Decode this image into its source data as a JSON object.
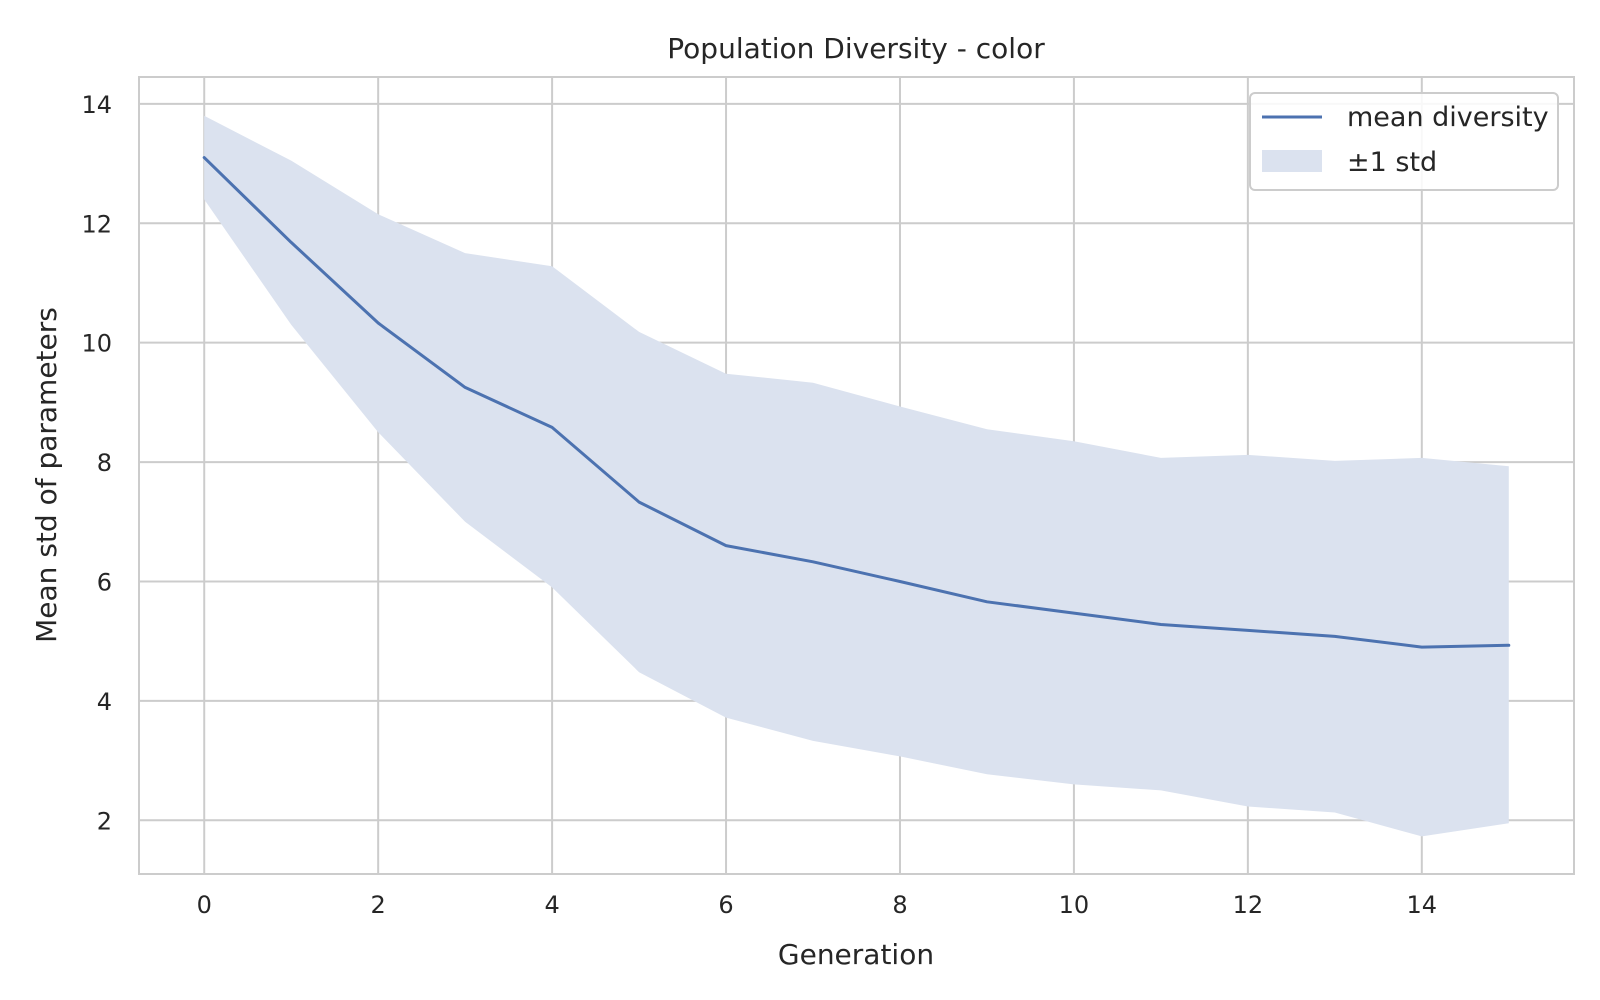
{
  "chart_data": {
    "type": "line",
    "title": "Population Diversity - color",
    "xlabel": "Generation",
    "ylabel": "Mean std of parameters",
    "xlim": [
      -0.75,
      15.75
    ],
    "ylim": [
      1.1,
      14.45
    ],
    "x_ticks": [
      0,
      2,
      4,
      6,
      8,
      10,
      12,
      14
    ],
    "y_ticks": [
      2,
      4,
      6,
      8,
      10,
      12,
      14
    ],
    "grid": true,
    "legend_position": "top-right",
    "x": [
      0,
      1,
      2,
      3,
      4,
      5,
      6,
      7,
      8,
      9,
      10,
      11,
      12,
      13,
      14,
      15
    ],
    "series": [
      {
        "name": "mean diversity",
        "color": "#4c72b0",
        "values": [
          13.1,
          11.68,
          10.33,
          9.25,
          8.58,
          7.33,
          6.6,
          6.33,
          6.0,
          5.66,
          5.47,
          5.28,
          5.18,
          5.08,
          4.9,
          4.93
        ]
      }
    ],
    "band": {
      "name": "±1 std",
      "color": "#dbe2ef",
      "lower": [
        12.4,
        10.3,
        8.5,
        7.0,
        5.9,
        4.48,
        3.72,
        3.33,
        3.07,
        2.77,
        2.6,
        2.5,
        2.23,
        2.13,
        1.73,
        1.95
      ],
      "upper": [
        13.8,
        13.05,
        12.15,
        11.5,
        11.28,
        10.18,
        9.48,
        9.33,
        8.93,
        8.55,
        8.35,
        8.07,
        8.12,
        8.02,
        8.07,
        7.93
      ]
    }
  }
}
